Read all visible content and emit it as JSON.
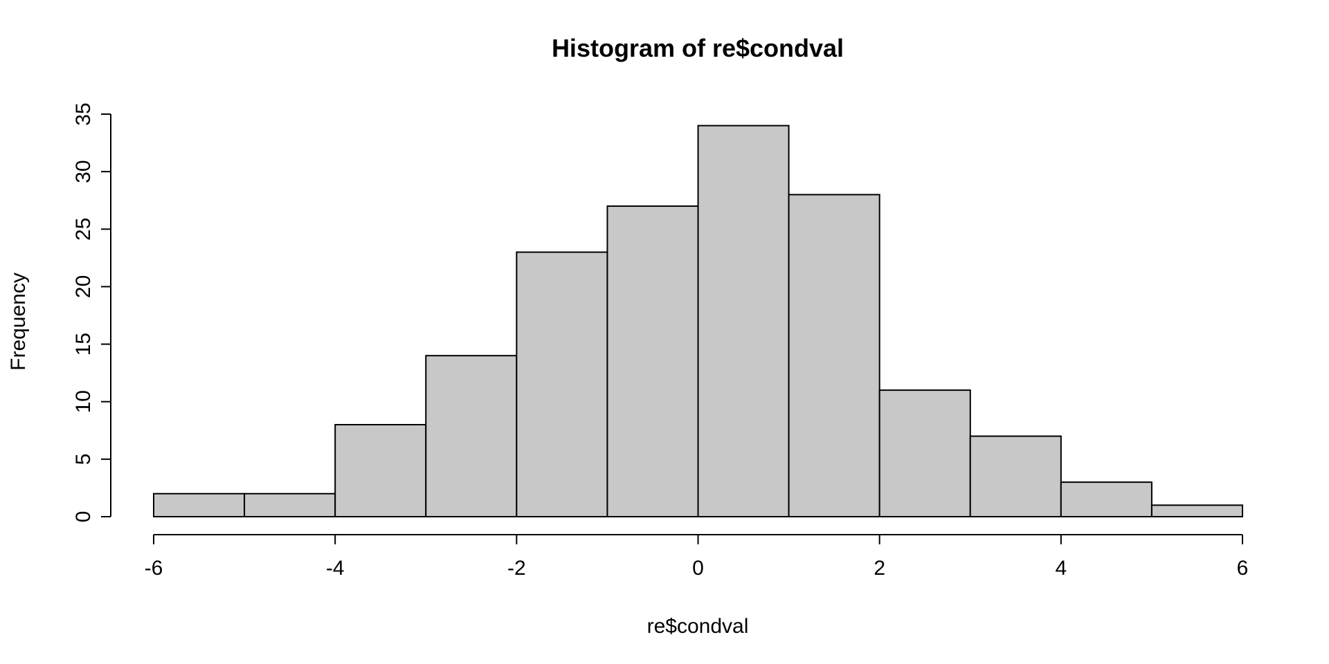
{
  "chart_data": {
    "type": "bar",
    "title": "Histogram of re$condval",
    "xlabel": "re$condval",
    "ylabel": "Frequency",
    "bin_edges": [
      -6,
      -5,
      -4,
      -3,
      -2,
      -1,
      0,
      1,
      2,
      3,
      4,
      5,
      6
    ],
    "values": [
      2,
      2,
      8,
      14,
      23,
      27,
      34,
      28,
      11,
      7,
      3,
      1
    ],
    "xlim": [
      -6,
      6
    ],
    "ylim": [
      0,
      35
    ],
    "x_ticks": [
      -6,
      -4,
      -2,
      0,
      2,
      4,
      6
    ],
    "y_ticks": [
      0,
      5,
      10,
      15,
      20,
      25,
      30,
      35
    ],
    "bar_color": "#c8c8c8",
    "edge_color": "#000000",
    "grid": false,
    "legend": "none"
  }
}
